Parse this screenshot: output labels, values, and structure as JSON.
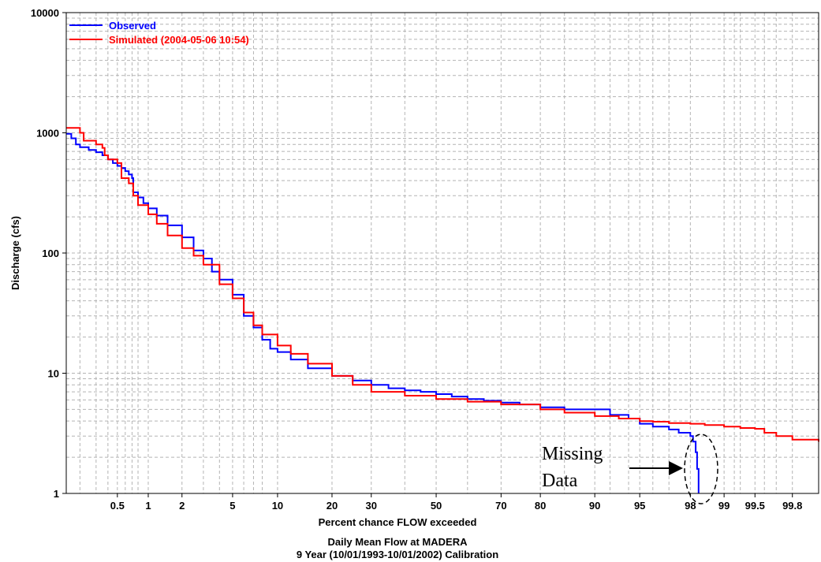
{
  "chart_data": {
    "type": "line",
    "title": "Daily Mean Flow at MADERA",
    "subtitle": "9 Year (10/01/1993-10/01/2002) Calibration",
    "xlabel": "Percent chance FLOW exceeded",
    "ylabel": "Discharge (cfs)",
    "x_scale": "normal-probability",
    "y_scale": "log",
    "xlim": [
      0.14,
      99.9
    ],
    "ylim": [
      1,
      10000
    ],
    "grid": true,
    "legend_position": "top-left",
    "x_ticks": [
      {
        "value": 0.5,
        "label": "0.5"
      },
      {
        "value": 1,
        "label": "1"
      },
      {
        "value": 2,
        "label": "2"
      },
      {
        "value": 5,
        "label": "5"
      },
      {
        "value": 10,
        "label": "10"
      },
      {
        "value": 20,
        "label": "20"
      },
      {
        "value": 30,
        "label": "30"
      },
      {
        "value": 50,
        "label": "50"
      },
      {
        "value": 70,
        "label": "70"
      },
      {
        "value": 80,
        "label": "80"
      },
      {
        "value": 90,
        "label": "90"
      },
      {
        "value": 95,
        "label": "95"
      },
      {
        "value": 98,
        "label": "98"
      },
      {
        "value": 99,
        "label": "99"
      },
      {
        "value": 99.5,
        "label": "99.5"
      },
      {
        "value": 99.8,
        "label": "99.8"
      }
    ],
    "x_minor": [
      0.2,
      0.3,
      0.4,
      0.6,
      0.7,
      0.8,
      3,
      4,
      6,
      7,
      8,
      40,
      60,
      85,
      92,
      94,
      96,
      97,
      99.2,
      99.3,
      99.6,
      99.7
    ],
    "y_ticks": [
      {
        "value": 1,
        "label": "1"
      },
      {
        "value": 10,
        "label": "10"
      },
      {
        "value": 100,
        "label": "100"
      },
      {
        "value": 1000,
        "label": "1000"
      },
      {
        "value": 10000,
        "label": "10000"
      }
    ],
    "series": [
      {
        "name": "Observed",
        "color": "#0000ff",
        "points": [
          [
            0.14,
            980
          ],
          [
            0.16,
            900
          ],
          [
            0.18,
            800
          ],
          [
            0.2,
            760
          ],
          [
            0.25,
            720
          ],
          [
            0.3,
            690
          ],
          [
            0.35,
            650
          ],
          [
            0.4,
            600
          ],
          [
            0.45,
            560
          ],
          [
            0.5,
            530
          ],
          [
            0.55,
            510
          ],
          [
            0.6,
            480
          ],
          [
            0.65,
            450
          ],
          [
            0.7,
            420
          ],
          [
            0.72,
            320
          ],
          [
            0.8,
            290
          ],
          [
            0.9,
            260
          ],
          [
            1.0,
            235
          ],
          [
            1.2,
            205
          ],
          [
            1.5,
            170
          ],
          [
            2.0,
            135
          ],
          [
            2.5,
            105
          ],
          [
            3.0,
            90
          ],
          [
            3.5,
            70
          ],
          [
            4.0,
            60
          ],
          [
            5.0,
            45
          ],
          [
            6.0,
            30
          ],
          [
            7.0,
            24
          ],
          [
            8.0,
            19
          ],
          [
            9.0,
            16
          ],
          [
            10,
            15
          ],
          [
            12,
            13
          ],
          [
            15,
            11
          ],
          [
            20,
            9.5
          ],
          [
            25,
            8.7
          ],
          [
            30,
            8.0
          ],
          [
            35,
            7.5
          ],
          [
            40,
            7.2
          ],
          [
            45,
            7.0
          ],
          [
            50,
            6.7
          ],
          [
            55,
            6.4
          ],
          [
            60,
            6.1
          ],
          [
            65,
            5.9
          ],
          [
            70,
            5.7
          ],
          [
            75,
            5.5
          ],
          [
            80,
            5.2
          ],
          [
            85,
            5.0
          ],
          [
            88,
            5.0
          ],
          [
            90,
            5.0
          ],
          [
            92,
            4.5
          ],
          [
            94,
            4.2
          ],
          [
            95,
            3.8
          ],
          [
            96,
            3.6
          ],
          [
            97,
            3.4
          ],
          [
            97.5,
            3.2
          ],
          [
            98,
            3.0
          ],
          [
            98.1,
            2.7
          ],
          [
            98.2,
            2.2
          ],
          [
            98.25,
            1.6
          ],
          [
            98.3,
            1.0
          ]
        ]
      },
      {
        "name": "Simulated (2004-05-06 10:54)",
        "color": "#ff0000",
        "points": [
          [
            0.14,
            1100
          ],
          [
            0.2,
            1000
          ],
          [
            0.22,
            860
          ],
          [
            0.3,
            800
          ],
          [
            0.35,
            750
          ],
          [
            0.37,
            650
          ],
          [
            0.4,
            600
          ],
          [
            0.5,
            560
          ],
          [
            0.55,
            420
          ],
          [
            0.65,
            380
          ],
          [
            0.72,
            300
          ],
          [
            0.8,
            250
          ],
          [
            1.0,
            210
          ],
          [
            1.2,
            175
          ],
          [
            1.5,
            140
          ],
          [
            2.0,
            110
          ],
          [
            2.5,
            95
          ],
          [
            3.0,
            80
          ],
          [
            4.0,
            55
          ],
          [
            5.0,
            42
          ],
          [
            6.0,
            32
          ],
          [
            7.0,
            25
          ],
          [
            8.0,
            21
          ],
          [
            10,
            17
          ],
          [
            12,
            14.5
          ],
          [
            15,
            12
          ],
          [
            20,
            9.5
          ],
          [
            25,
            8.0
          ],
          [
            30,
            7.0
          ],
          [
            40,
            6.5
          ],
          [
            50,
            6.1
          ],
          [
            60,
            5.8
          ],
          [
            70,
            5.5
          ],
          [
            80,
            5.0
          ],
          [
            85,
            4.7
          ],
          [
            90,
            4.4
          ],
          [
            93,
            4.2
          ],
          [
            95,
            4.0
          ],
          [
            96,
            3.95
          ],
          [
            97,
            3.85
          ],
          [
            98,
            3.8
          ],
          [
            98.5,
            3.7
          ],
          [
            99,
            3.6
          ],
          [
            99.3,
            3.5
          ],
          [
            99.5,
            3.45
          ],
          [
            99.6,
            3.2
          ],
          [
            99.7,
            3.0
          ],
          [
            99.8,
            2.8
          ],
          [
            99.9,
            2.7
          ]
        ]
      }
    ],
    "annotations": [
      {
        "text_lines": [
          "Missing",
          "Data"
        ],
        "points_to_x": 98.0,
        "points_to_y": 2.0
      }
    ]
  }
}
